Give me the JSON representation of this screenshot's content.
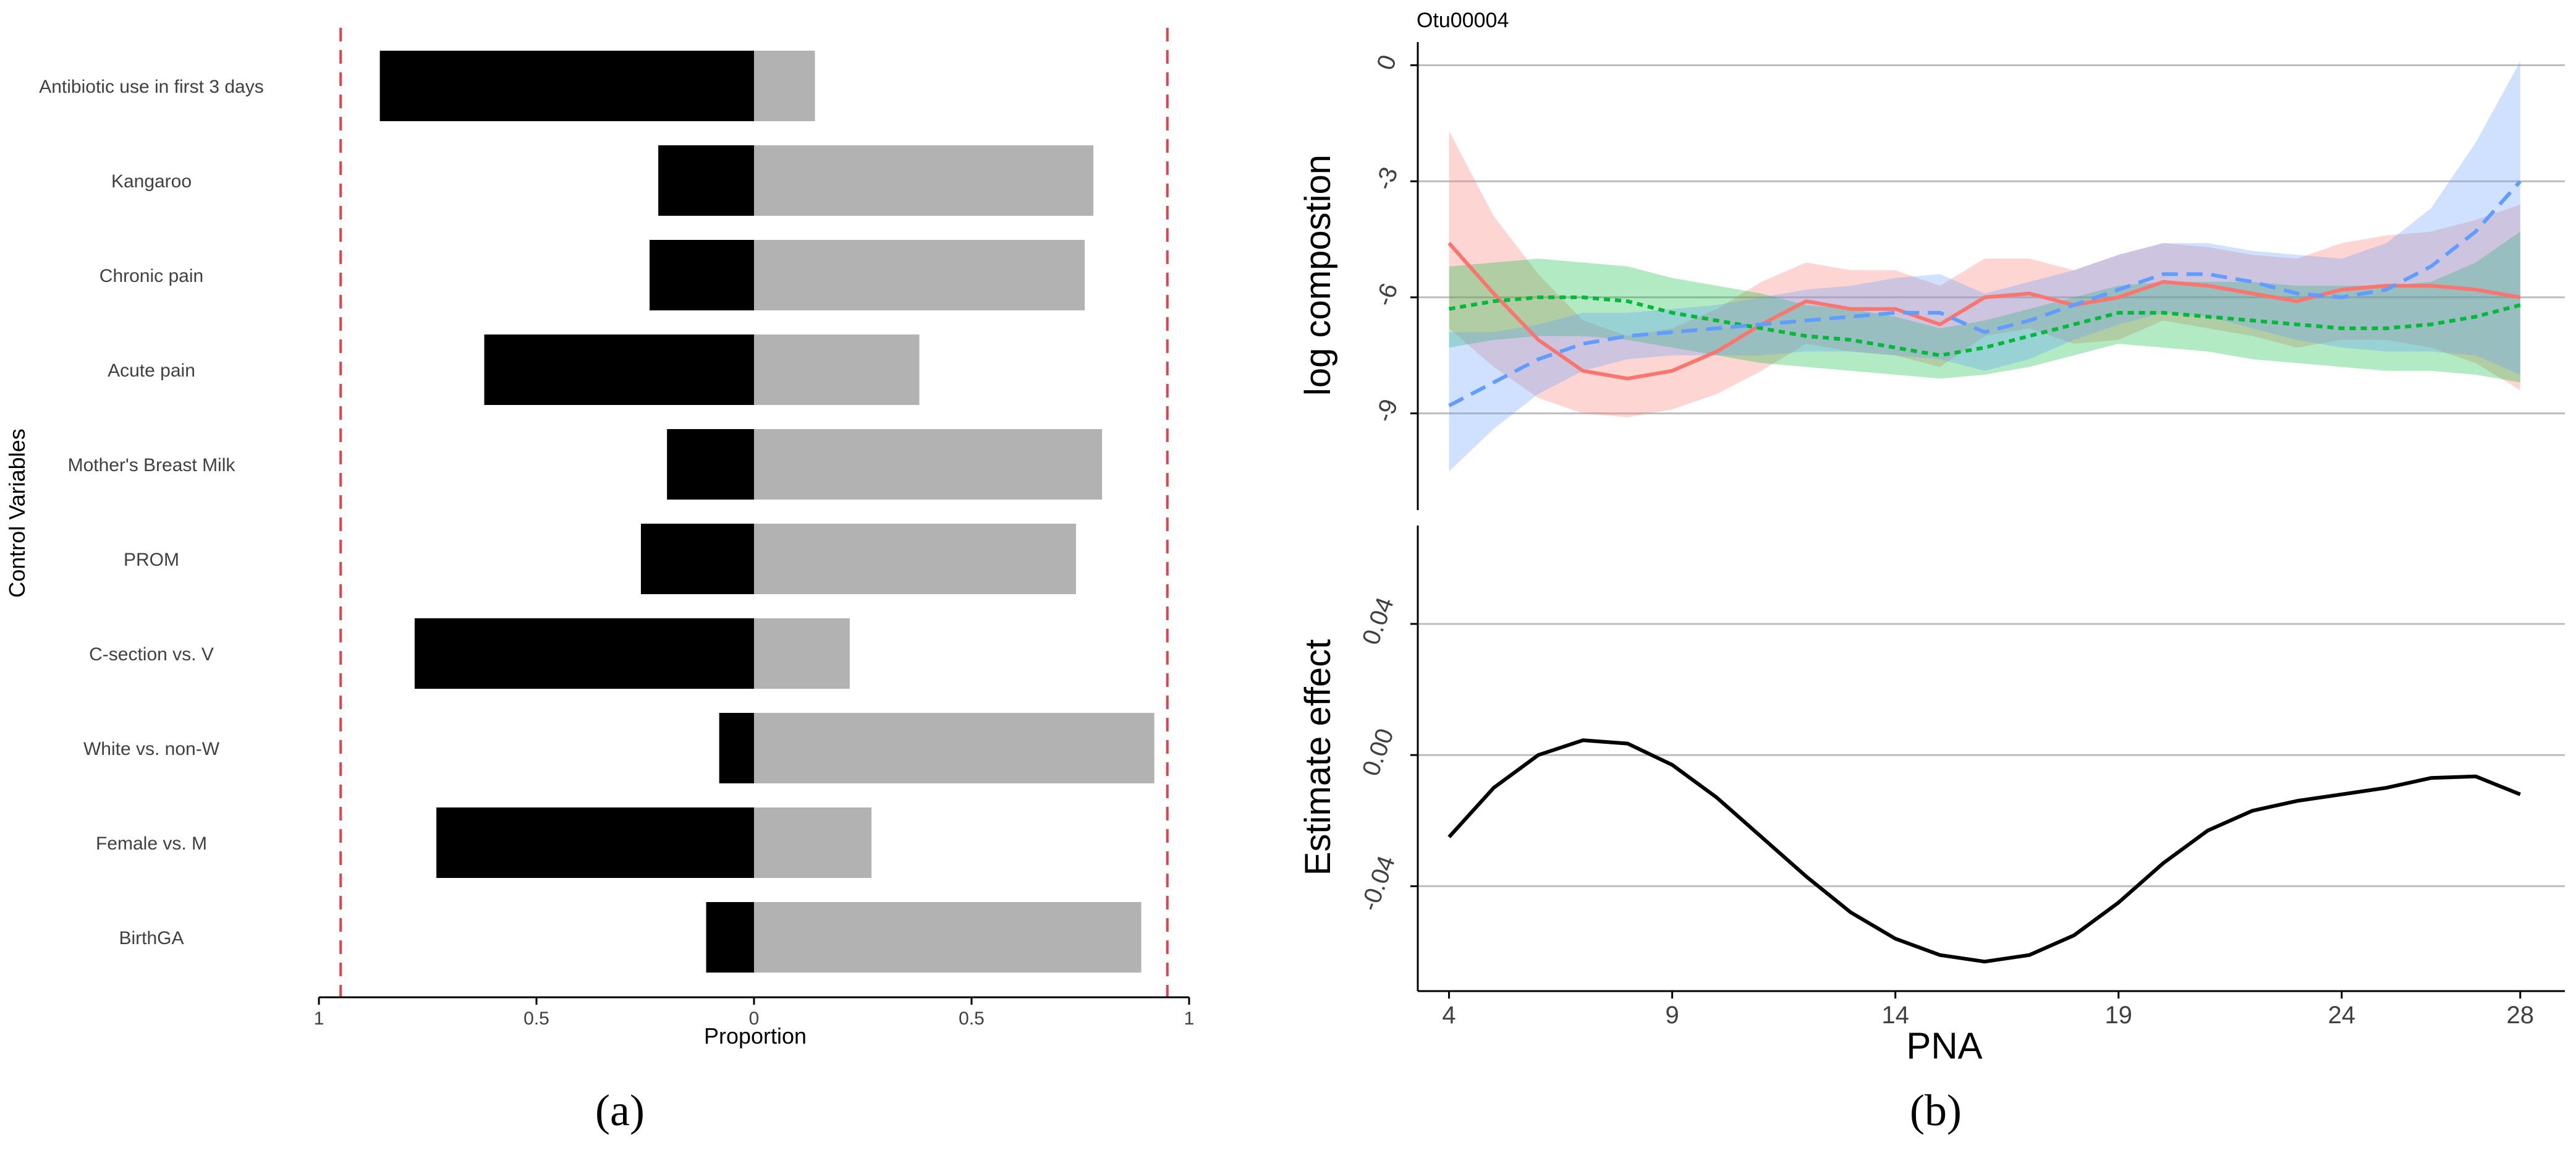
{
  "colors": {
    "negative_bar": "#000000",
    "positive_bar": "#b2b2b2",
    "reference_line": "#e8404a",
    "red": "#f8766d",
    "green": "#00ba38",
    "blue": "#619cff",
    "effect_line": "#000000",
    "grid": "#bdbdbd"
  },
  "chart_data": [
    {
      "type": "bar",
      "orientation": "horizontal-diverging",
      "panel_label": "(a)",
      "title": "",
      "xlabel": "Proportion",
      "ylabel": "Control Variables",
      "xlim": [
        -1,
        1
      ],
      "xticks": [
        -1,
        -0.5,
        0,
        0.5,
        1
      ],
      "xtick_labels": [
        "1",
        "0.5",
        "0",
        "0.5",
        "1"
      ],
      "reference_lines": [
        -0.95,
        0.95
      ],
      "categories": [
        "Antibiotic use in first 3 days",
        "Kangaroo",
        "Chronic pain",
        "Acute pain",
        "Mother's Breast Milk",
        "PROM",
        "C-section vs. V",
        "White vs. non-W",
        "Female vs. M",
        "BirthGA"
      ],
      "series": [
        {
          "values": [
            -0.86,
            -0.22,
            -0.24,
            -0.62,
            -0.2,
            -0.26,
            -0.78,
            -0.08,
            -0.73,
            -0.11
          ]
        },
        {
          "values": [
            0.14,
            0.78,
            0.76,
            0.38,
            0.8,
            0.74,
            0.22,
            0.92,
            0.27,
            0.89
          ]
        }
      ],
      "legend": "none",
      "grid": false
    },
    {
      "type": "line",
      "panel_label": "(b)",
      "strip_title": "Otu00004",
      "xlabel": "PNA",
      "ylabel": "log compostion",
      "xlim": [
        3.3,
        29
      ],
      "ylim": [
        -11.5,
        0.6
      ],
      "xticks": [
        4,
        9,
        14,
        19,
        24,
        28
      ],
      "yticks": [
        0,
        -3,
        -6,
        -9
      ],
      "ytick_labels": [
        "0",
        "-3",
        "-6",
        "-9"
      ],
      "grid": "horizontal",
      "legend": "none",
      "series": [
        {
          "color": "red",
          "style": "solid",
          "x": [
            4,
            5,
            6,
            7,
            8,
            9,
            10,
            11,
            12,
            13,
            14,
            15,
            16,
            17,
            18,
            19,
            20,
            21,
            22,
            23,
            24,
            25,
            26,
            27,
            28
          ],
          "y": [
            -4.6,
            -5.9,
            -7.1,
            -7.9,
            -8.1,
            -7.9,
            -7.4,
            -6.7,
            -6.1,
            -6.3,
            -6.3,
            -6.7,
            -6.0,
            -5.9,
            -6.2,
            -6.0,
            -5.6,
            -5.7,
            -5.9,
            -6.1,
            -5.8,
            -5.7,
            -5.7,
            -5.8,
            -6.0
          ],
          "lower": [
            -6.8,
            -7.8,
            -8.6,
            -9.0,
            -9.1,
            -8.9,
            -8.5,
            -7.9,
            -7.2,
            -7.4,
            -7.5,
            -7.8,
            -7.0,
            -6.8,
            -7.2,
            -7.1,
            -6.6,
            -6.8,
            -7.0,
            -7.3,
            -7.1,
            -7.1,
            -7.3,
            -7.7,
            -8.4
          ],
          "upper": [
            -1.7,
            -3.9,
            -5.4,
            -6.6,
            -7.0,
            -6.8,
            -6.3,
            -5.6,
            -5.1,
            -5.3,
            -5.3,
            -5.7,
            -5.0,
            -5.0,
            -5.3,
            -4.9,
            -4.6,
            -4.7,
            -4.9,
            -5.0,
            -4.6,
            -4.4,
            -4.3,
            -4.0,
            -3.6
          ]
        },
        {
          "color": "green",
          "style": "dotted",
          "x": [
            4,
            5,
            6,
            7,
            8,
            9,
            10,
            11,
            12,
            13,
            14,
            15,
            16,
            17,
            18,
            19,
            20,
            21,
            22,
            23,
            24,
            25,
            26,
            27,
            28
          ],
          "y": [
            -6.3,
            -6.1,
            -6.0,
            -6.0,
            -6.1,
            -6.4,
            -6.6,
            -6.8,
            -7.0,
            -7.1,
            -7.3,
            -7.5,
            -7.3,
            -7.0,
            -6.7,
            -6.4,
            -6.4,
            -6.5,
            -6.6,
            -6.7,
            -6.8,
            -6.8,
            -6.7,
            -6.5,
            -6.2
          ],
          "lower": [
            -7.3,
            -7.1,
            -7.0,
            -7.0,
            -7.1,
            -7.3,
            -7.5,
            -7.7,
            -7.8,
            -7.9,
            -8.0,
            -8.1,
            -8.0,
            -7.8,
            -7.5,
            -7.2,
            -7.3,
            -7.4,
            -7.6,
            -7.7,
            -7.8,
            -7.9,
            -7.9,
            -8.0,
            -8.2
          ],
          "upper": [
            -5.2,
            -5.1,
            -5.0,
            -5.1,
            -5.2,
            -5.5,
            -5.7,
            -5.9,
            -6.2,
            -6.3,
            -6.5,
            -6.8,
            -6.6,
            -6.3,
            -6.0,
            -5.7,
            -5.6,
            -5.6,
            -5.6,
            -5.7,
            -5.7,
            -5.7,
            -5.6,
            -5.1,
            -4.3
          ]
        },
        {
          "color": "blue",
          "style": "dashed",
          "x": [
            4,
            5,
            6,
            7,
            8,
            9,
            10,
            11,
            12,
            13,
            14,
            15,
            16,
            17,
            18,
            19,
            20,
            21,
            22,
            23,
            24,
            25,
            26,
            27,
            28
          ],
          "y": [
            -8.8,
            -8.2,
            -7.6,
            -7.2,
            -7.0,
            -6.9,
            -6.8,
            -6.7,
            -6.6,
            -6.5,
            -6.4,
            -6.4,
            -6.9,
            -6.6,
            -6.2,
            -5.8,
            -5.4,
            -5.4,
            -5.6,
            -5.9,
            -6.0,
            -5.8,
            -5.2,
            -4.3,
            -3.0
          ],
          "lower": [
            -10.5,
            -9.4,
            -8.5,
            -7.9,
            -7.6,
            -7.5,
            -7.5,
            -7.5,
            -7.4,
            -7.4,
            -7.5,
            -7.6,
            -7.9,
            -7.6,
            -7.1,
            -6.7,
            -6.4,
            -6.5,
            -6.8,
            -7.1,
            -7.3,
            -7.4,
            -7.4,
            -7.5,
            -8.0
          ],
          "upper": [
            -6.9,
            -6.9,
            -6.7,
            -6.4,
            -6.4,
            -6.3,
            -6.2,
            -6.0,
            -5.8,
            -5.7,
            -5.5,
            -5.4,
            -5.9,
            -5.6,
            -5.3,
            -4.9,
            -4.6,
            -4.6,
            -4.8,
            -4.9,
            -5.0,
            -4.6,
            -3.7,
            -2.0,
            0.1
          ]
        }
      ]
    },
    {
      "type": "line",
      "xlabel": "PNA",
      "ylabel": "Estimate effect",
      "xlim": [
        3.3,
        29
      ],
      "ylim": [
        -0.072,
        0.07
      ],
      "xticks": [
        4,
        9,
        14,
        19,
        24,
        28
      ],
      "yticks": [
        0.04,
        0.0,
        -0.04
      ],
      "ytick_labels": [
        "0.04",
        "0.00",
        "-0.04"
      ],
      "grid": "horizontal",
      "legend": "none",
      "series": [
        {
          "color": "effect_line",
          "style": "solid",
          "x": [
            4,
            5,
            6,
            7,
            8,
            9,
            10,
            11,
            12,
            13,
            14,
            15,
            16,
            17,
            18,
            19,
            20,
            21,
            22,
            23,
            24,
            25,
            26,
            27,
            28
          ],
          "y": [
            -0.025,
            -0.01,
            0.0,
            0.0045,
            0.0035,
            -0.003,
            -0.013,
            -0.025,
            -0.037,
            -0.048,
            -0.056,
            -0.061,
            -0.063,
            -0.061,
            -0.055,
            -0.045,
            -0.033,
            -0.023,
            -0.017,
            -0.014,
            -0.012,
            -0.01,
            -0.007,
            -0.0065,
            -0.012
          ]
        }
      ]
    }
  ]
}
